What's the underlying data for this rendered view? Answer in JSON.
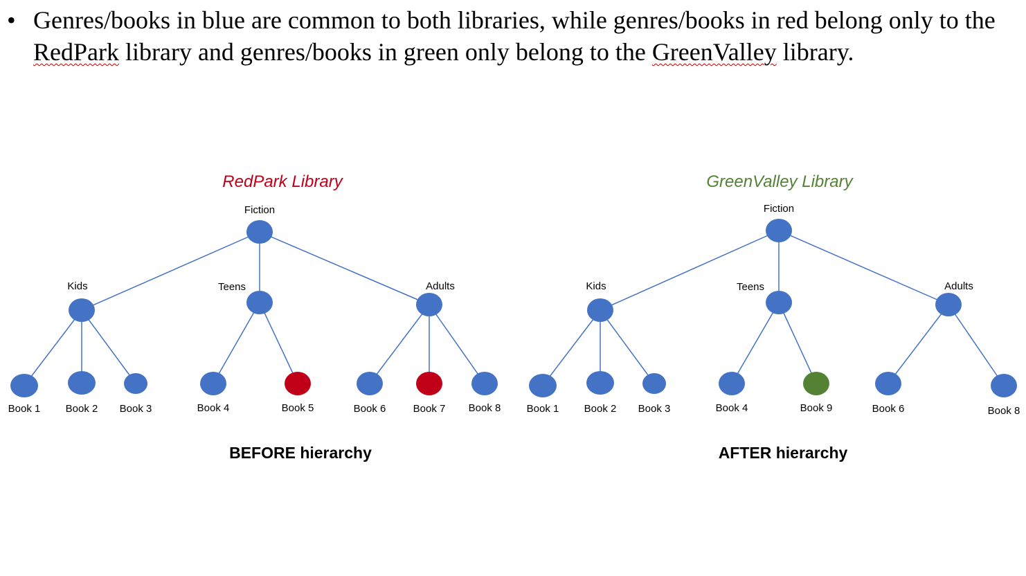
{
  "intro": {
    "bullet": "•",
    "part1": "Genres/books in blue are common to both libraries, while genres/books in red belong only to the ",
    "redpark_word": "RedPark",
    "part2": " library and genres/books in green only belong to the ",
    "greenvalley_word": "GreenValley",
    "part3": " library."
  },
  "colors": {
    "common": "#4472c4",
    "redpark_only": "#c00018",
    "greenvalley_only": "#548235",
    "edge": "#4472c4"
  },
  "trees": [
    {
      "id": "before",
      "title": "RedPark Library",
      "title_color": "#c00018",
      "caption": "BEFORE hierarchy",
      "root": "Fiction",
      "genres": [
        {
          "label": "Kids",
          "books": [
            {
              "label": "Book 1",
              "membership": "common"
            },
            {
              "label": "Book 2",
              "membership": "common"
            },
            {
              "label": "Book 3",
              "membership": "common"
            }
          ]
        },
        {
          "label": "Teens",
          "books": [
            {
              "label": "Book 4",
              "membership": "common"
            },
            {
              "label": "Book 5",
              "membership": "redpark_only"
            }
          ]
        },
        {
          "label": "Adults",
          "books": [
            {
              "label": "Book 6",
              "membership": "common"
            },
            {
              "label": "Book 7",
              "membership": "redpark_only"
            },
            {
              "label": "Book 8",
              "membership": "common"
            }
          ]
        }
      ]
    },
    {
      "id": "after",
      "title": "GreenValley Library",
      "title_color": "#548235",
      "caption": "AFTER hierarchy",
      "root": "Fiction",
      "genres": [
        {
          "label": "Kids",
          "books": [
            {
              "label": "Book 1",
              "membership": "common"
            },
            {
              "label": "Book 2",
              "membership": "common"
            },
            {
              "label": "Book 3",
              "membership": "common"
            }
          ]
        },
        {
          "label": "Teens",
          "books": [
            {
              "label": "Book 4",
              "membership": "common"
            },
            {
              "label": "Book 9",
              "membership": "greenvalley_only"
            }
          ]
        },
        {
          "label": "Adults",
          "books": [
            {
              "label": "Book 6",
              "membership": "common"
            },
            {
              "label": "Book 8",
              "membership": "common"
            }
          ]
        }
      ]
    }
  ]
}
